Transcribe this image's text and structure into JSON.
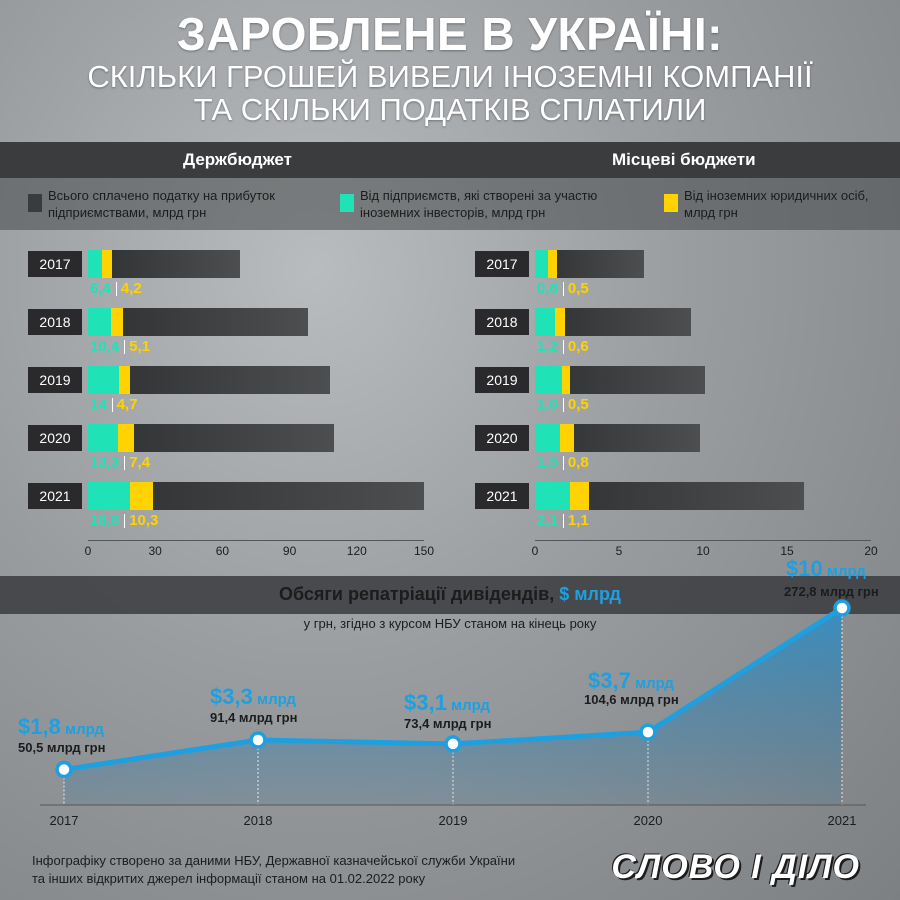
{
  "header": {
    "title": "ЗАРОБЛЕНЕ В УКРАЇНІ:",
    "subtitle_1": "СКІЛЬКИ ГРОШЕЙ ВИВЕЛИ ІНОЗЕМНІ КОМПАНІЇ",
    "subtitle_2": "ТА СКІЛЬКИ ПОДАТКІВ СПЛАТИЛИ"
  },
  "legend": {
    "total": "Всього сплачено податку на прибуток підприємствами, млрд грн",
    "foreign_invest": "Від підприємств, які створені за участю іноземних інвесторів, млрд грн",
    "foreign_legal": "Від іноземних юридичних осіб, млрд грн"
  },
  "colors": {
    "total": "#4a4b4d",
    "foreign_invest": "#1fe3b6",
    "foreign_legal": "#ffd200",
    "line": "#1ea0e0"
  },
  "chart_data": [
    {
      "type": "bar",
      "title": "Держбюджет",
      "categories": [
        "2017",
        "2018",
        "2019",
        "2020",
        "2021"
      ],
      "series": [
        {
          "name": "Всього сплачено податку на прибуток підприємствами, млрд грн",
          "values": [
            68,
            98,
            108,
            110,
            150
          ]
        },
        {
          "name": "Від підприємств, які створені за участю іноземних інвесторів, млрд грн",
          "values": [
            6.4,
            10.4,
            14,
            13.3,
            18.8
          ]
        },
        {
          "name": "Від іноземних юридичних осіб, млрд грн",
          "values": [
            4.2,
            5.1,
            4.7,
            7.4,
            10.3
          ]
        }
      ],
      "value_labels": {
        "foreign_invest": [
          "6,4",
          "10,4",
          "14",
          "13,3",
          "18,8"
        ],
        "foreign_legal": [
          "4,2",
          "5,1",
          "4,7",
          "7,4",
          "10,3"
        ]
      },
      "xlim": [
        0,
        150
      ],
      "ticks": [
        "0",
        "30",
        "60",
        "90",
        "120",
        "150"
      ]
    },
    {
      "type": "bar",
      "title": "Місцеві бюджети",
      "categories": [
        "2017",
        "2018",
        "2019",
        "2020",
        "2021"
      ],
      "series": [
        {
          "name": "Всього сплачено податку на прибуток підприємствами, млрд грн",
          "values": [
            6.5,
            9.3,
            10.1,
            9.8,
            16
          ]
        },
        {
          "name": "Від підприємств, які створені за участю іноземних інвесторів, млрд грн",
          "values": [
            0.8,
            1.2,
            1.6,
            1.5,
            2.1
          ]
        },
        {
          "name": "Від іноземних юридичних осіб, млрд грн",
          "values": [
            0.5,
            0.6,
            0.5,
            0.8,
            1.1
          ]
        }
      ],
      "value_labels": {
        "foreign_invest": [
          "0,8",
          "1,2",
          "1,6",
          "1,5",
          "2,1"
        ],
        "foreign_legal": [
          "0,5",
          "0,6",
          "0,5",
          "0,8",
          "1,1"
        ]
      },
      "xlim": [
        0,
        20
      ],
      "ticks": [
        "0",
        "5",
        "10",
        "15",
        "20"
      ]
    },
    {
      "type": "area",
      "title": "Обсяги репатріації дивідендів,",
      "title_unit": "$ млрд",
      "subtitle": "у грн, згідно з курсом НБУ станом на кінець року",
      "x": [
        "2017",
        "2018",
        "2019",
        "2020",
        "2021"
      ],
      "series": [
        {
          "values": [
            1.8,
            3.3,
            3.1,
            3.7,
            10
          ]
        }
      ],
      "usd_labels": [
        "$1,8",
        "$3,3",
        "$3,1",
        "$3,7",
        "$10"
      ],
      "usd_unit": "млрд",
      "uah_labels": [
        "50,5 млрд грн",
        "91,4 млрд грн",
        "73,4 млрд грн",
        "104,6 млрд грн",
        "272,8 млрд грн"
      ],
      "ylim": [
        0,
        10
      ]
    }
  ],
  "footer": {
    "line1": "Інфографіку створено за даними НБУ, Державної казначейської служби України",
    "line2": "та інших відкритих джерел інформації станом на 01.02.2022 року"
  },
  "logo": "СЛОВО І ДІЛО"
}
